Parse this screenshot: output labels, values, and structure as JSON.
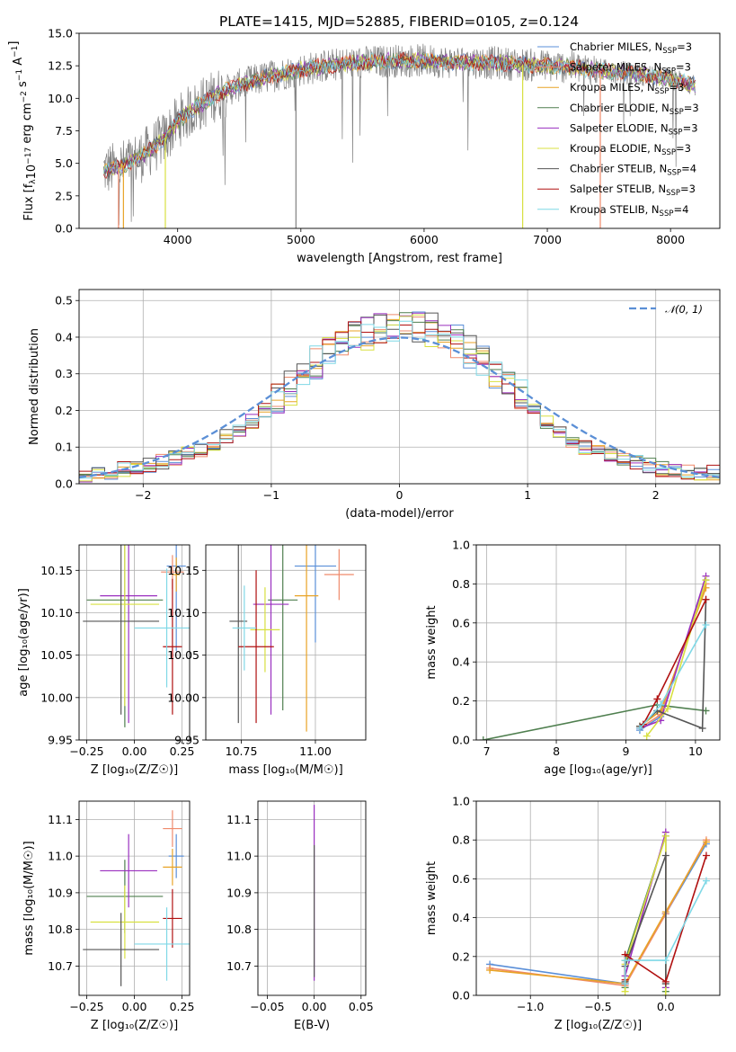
{
  "title": "PLATE=1415, MJD=52885, FIBERID=0105, z=0.124",
  "colors": {
    "Chabrier MILES": "#5a8fd8",
    "Salpeter MILES": "#ef8a6b",
    "Kroupa MILES": "#e8a326",
    "Chabrier ELODIE": "#4f7f4f",
    "Salpeter ELODIE": "#9a2fbf",
    "Kroupa ELODIE": "#d8e040",
    "Chabrier STELIB": "#555555",
    "Salpeter STELIB": "#b01010",
    "Kroupa STELIB": "#7fd8e6",
    "normal": "#5b8fd6"
  },
  "chart_data": [
    {
      "type": "line",
      "xlabel": "wavelength [Angstrom, rest frame]",
      "ylabel": "Flux [f_λ10^-17 erg cm^-2 s^-1 A^-1]",
      "xlim": [
        3200,
        8400
      ],
      "ylim": [
        0,
        15
      ],
      "xticks": [
        "4000",
        "5000",
        "6000",
        "7000",
        "8000"
      ],
      "yticks": [
        "0.0",
        "2.5",
        "5.0",
        "7.5",
        "10.0",
        "12.5",
        "15.0"
      ],
      "grid": false,
      "legend_position": "right",
      "series": [
        {
          "name": "Chabrier MILES, N_SSP=3"
        },
        {
          "name": "Salpeter MILES, N_SSP=3"
        },
        {
          "name": "Kroupa MILES, N_SSP=3"
        },
        {
          "name": "Chabrier ELODIE, N_SSP=3"
        },
        {
          "name": "Salpeter ELODIE, N_SSP=3"
        },
        {
          "name": "Kroupa ELODIE, N_SSP=3"
        },
        {
          "name": "Chabrier STELIB, N_SSP=4"
        },
        {
          "name": "Salpeter STELIB, N_SSP=3"
        },
        {
          "name": "Kroupa STELIB, N_SSP=4"
        }
      ],
      "continuum": {
        "x": [
          3400,
          3500,
          3600,
          3700,
          3800,
          3900,
          4000,
          4100,
          4200,
          4300,
          4400,
          4500,
          4600,
          4800,
          5000,
          5200,
          5400,
          5600,
          5800,
          6000,
          6200,
          6400,
          6600,
          6800,
          7000,
          7200,
          7400,
          7600,
          7800,
          8000,
          8200
        ],
        "y": [
          4.5,
          4.6,
          5.0,
          5.5,
          6.2,
          7.0,
          8.2,
          9.0,
          9.6,
          10.2,
          10.6,
          11.0,
          11.3,
          11.8,
          12.2,
          12.5,
          12.7,
          12.8,
          12.9,
          12.9,
          12.8,
          12.8,
          12.7,
          12.6,
          12.5,
          12.4,
          12.2,
          12.0,
          11.8,
          11.5,
          11.0
        ]
      }
    },
    {
      "type": "bar",
      "xlabel": "(data-model)/error",
      "ylabel": "Normed distribution",
      "xlim": [
        -2.5,
        2.5
      ],
      "ylim": [
        0,
        0.53
      ],
      "xticks": [
        "−2",
        "−1",
        "0",
        "1",
        "2"
      ],
      "yticks": [
        "0.0",
        "0.1",
        "0.2",
        "0.3",
        "0.4",
        "0.5"
      ],
      "grid": true,
      "legend_position": "top-right",
      "legend": "𝒩(0, 1)",
      "bin_width": 0.1,
      "histogram_mean": [
        0.02,
        0.03,
        0.03,
        0.04,
        0.04,
        0.05,
        0.06,
        0.07,
        0.08,
        0.09,
        0.11,
        0.13,
        0.15,
        0.17,
        0.2,
        0.23,
        0.26,
        0.3,
        0.33,
        0.36,
        0.38,
        0.4,
        0.41,
        0.42,
        0.43,
        0.43,
        0.43,
        0.42,
        0.41,
        0.39,
        0.36,
        0.33,
        0.3,
        0.27,
        0.24,
        0.2,
        0.17,
        0.14,
        0.12,
        0.1,
        0.09,
        0.08,
        0.07,
        0.06,
        0.05,
        0.04,
        0.04,
        0.03,
        0.03,
        0.03
      ]
    },
    {
      "type": "scatter",
      "xlabel": "Z [log10(Z/Z☉)]",
      "ylabel": "age  [log10(age/yr)]",
      "xlim": [
        -0.29,
        0.29
      ],
      "ylim": [
        9.95,
        10.18
      ],
      "xticks": [
        "−0.25",
        "0.00",
        "0.25"
      ],
      "yticks": [
        "9.95",
        "10.00",
        "10.05",
        "10.10",
        "10.15"
      ],
      "points": [
        {
          "x": 0.22,
          "y": 10.155,
          "xerr": 0.05,
          "yerr": 0.1
        },
        {
          "x": 0.2,
          "y": 10.148,
          "xerr": 0.06,
          "yerr": 0.02
        },
        {
          "x": 0.22,
          "y": 10.145,
          "xerr": 0.02,
          "yerr": 0.02
        },
        {
          "x": -0.05,
          "y": 10.115,
          "xerr": 0.2,
          "yerr": 0.15
        },
        {
          "x": -0.03,
          "y": 10.12,
          "xerr": 0.15,
          "yerr": 0.15
        },
        {
          "x": -0.05,
          "y": 10.11,
          "xerr": 0.18,
          "yerr": 0.12
        },
        {
          "x": -0.07,
          "y": 10.09,
          "xerr": 0.2,
          "yerr": 0.11
        },
        {
          "x": 0.2,
          "y": 10.06,
          "xerr": 0.05,
          "yerr": 0.08
        },
        {
          "x": 0.17,
          "y": 10.082,
          "xerr": 0.17,
          "yerr": 0.07
        }
      ]
    },
    {
      "type": "scatter",
      "xlabel": "mass [log10(M/M☉)]",
      "ylabel": "",
      "xlim": [
        10.63,
        11.17
      ],
      "ylim": [
        9.95,
        10.18
      ],
      "xticks": [
        "10.75",
        "11.00"
      ],
      "yticks": [
        "9.95",
        "10.00",
        "10.05",
        "10.10",
        "10.15"
      ],
      "points": [
        {
          "x": 11.0,
          "y": 10.155,
          "xerr": 0.07,
          "yerr": 0.09
        },
        {
          "x": 11.08,
          "y": 10.145,
          "xerr": 0.05,
          "yerr": 0.03
        },
        {
          "x": 10.97,
          "y": 10.12,
          "xerr": 0.04,
          "yerr": 0.16
        },
        {
          "x": 10.89,
          "y": 10.115,
          "xerr": 0.05,
          "yerr": 0.13
        },
        {
          "x": 10.85,
          "y": 10.11,
          "xerr": 0.06,
          "yerr": 0.13
        },
        {
          "x": 10.83,
          "y": 10.08,
          "xerr": 0.05,
          "yerr": 0.05
        },
        {
          "x": 10.74,
          "y": 10.09,
          "xerr": 0.03,
          "yerr": 0.12
        },
        {
          "x": 10.8,
          "y": 10.06,
          "xerr": 0.06,
          "yerr": 0.09
        },
        {
          "x": 10.76,
          "y": 10.082,
          "xerr": 0.04,
          "yerr": 0.05
        }
      ]
    },
    {
      "type": "line",
      "xlabel": "age  [log10(age/yr)]",
      "ylabel": "mass weight",
      "xlim": [
        6.85,
        10.35
      ],
      "ylim": [
        0,
        1.0
      ],
      "xticks": [
        "7",
        "8",
        "9",
        "10"
      ],
      "yticks": [
        "0.0",
        "0.2",
        "0.4",
        "0.6",
        "0.8",
        "1.0"
      ],
      "grid": true,
      "series": [
        {
          "x": [
            9.2,
            9.5,
            10.15
          ],
          "y": [
            0.05,
            0.12,
            0.82
          ]
        },
        {
          "x": [
            9.2,
            9.5,
            10.15
          ],
          "y": [
            0.06,
            0.13,
            0.8
          ]
        },
        {
          "x": [
            9.2,
            9.5,
            10.15
          ],
          "y": [
            0.07,
            0.15,
            0.78
          ]
        },
        {
          "x": [
            6.95,
            9.45,
            10.15
          ],
          "y": [
            0.0,
            0.18,
            0.15
          ]
        },
        {
          "x": [
            9.2,
            9.5,
            10.15
          ],
          "y": [
            0.06,
            0.1,
            0.84
          ]
        },
        {
          "x": [
            9.3,
            9.6,
            10.15
          ],
          "y": [
            0.02,
            0.16,
            0.82
          ]
        },
        {
          "x": [
            9.2,
            9.45,
            10.1,
            10.15
          ],
          "y": [
            0.07,
            0.15,
            0.06,
            0.72
          ]
        },
        {
          "x": [
            9.25,
            9.45,
            10.15
          ],
          "y": [
            0.08,
            0.21,
            0.72
          ]
        },
        {
          "x": [
            9.2,
            9.5,
            10.15
          ],
          "y": [
            0.06,
            0.18,
            0.59
          ]
        }
      ]
    },
    {
      "type": "scatter",
      "xlabel": "Z [log10(Z/Z☉)]",
      "ylabel": "mass [log10(M/M☉)]",
      "xlim": [
        -0.29,
        0.29
      ],
      "ylim": [
        10.62,
        11.15
      ],
      "xticks": [
        "−0.25",
        "0.00",
        "0.25"
      ],
      "yticks": [
        "10.7",
        "10.8",
        "10.9",
        "11.0",
        "11.1"
      ],
      "points": [
        {
          "x": 0.22,
          "y": 11.0,
          "xerr": 0.04,
          "yerr": 0.06
        },
        {
          "x": 0.2,
          "y": 11.075,
          "xerr": 0.05,
          "yerr": 0.05
        },
        {
          "x": 0.2,
          "y": 10.97,
          "xerr": 0.05,
          "yerr": 0.05
        },
        {
          "x": -0.05,
          "y": 10.89,
          "xerr": 0.2,
          "yerr": 0.1
        },
        {
          "x": -0.03,
          "y": 10.96,
          "xerr": 0.15,
          "yerr": 0.1
        },
        {
          "x": -0.05,
          "y": 10.82,
          "xerr": 0.18,
          "yerr": 0.1
        },
        {
          "x": -0.07,
          "y": 10.745,
          "xerr": 0.2,
          "yerr": 0.1
        },
        {
          "x": 0.2,
          "y": 10.83,
          "xerr": 0.05,
          "yerr": 0.08
        },
        {
          "x": 0.17,
          "y": 10.76,
          "xerr": 0.17,
          "yerr": 0.1
        }
      ]
    },
    {
      "type": "scatter",
      "xlabel": "E(B-V)",
      "ylabel": "",
      "xlim": [
        -0.06,
        0.055
      ],
      "ylim": [
        10.62,
        11.15
      ],
      "xticks": [
        "−0.05",
        "0.00",
        "0.05"
      ],
      "yticks": [
        "10.7",
        "10.8",
        "10.9",
        "11.0",
        "11.1"
      ],
      "points": [
        {
          "x": 0.0,
          "y": 10.9,
          "yerr": 0.24
        },
        {
          "x": 0.0,
          "y": 10.85,
          "yerr": 0.18
        }
      ]
    },
    {
      "type": "line",
      "xlabel": "Z [log10(Z/Z☉)]",
      "ylabel": "mass weight",
      "xlim": [
        -1.4,
        0.4
      ],
      "ylim": [
        0,
        1.0
      ],
      "xticks": [
        "−1.0",
        "−0.5",
        "0.0"
      ],
      "yticks": [
        "0.0",
        "0.2",
        "0.4",
        "0.6",
        "0.8",
        "1.0"
      ],
      "grid": true,
      "series": [
        {
          "x": [
            -1.3,
            -0.3,
            0.0,
            0.0,
            0.3
          ],
          "y": [
            0.16,
            0.06,
            0.42,
            0.42,
            0.78
          ]
        },
        {
          "x": [
            -1.3,
            -0.3,
            0.0,
            0.3
          ],
          "y": [
            0.14,
            0.05,
            0.42,
            0.8
          ]
        },
        {
          "x": [
            -1.3,
            -0.3,
            0.0,
            0.3
          ],
          "y": [
            0.13,
            0.06,
            0.43,
            0.79
          ]
        },
        {
          "x": [
            -0.3,
            -0.3,
            0.0,
            0.0
          ],
          "y": [
            0.04,
            0.18,
            0.82,
            0.02
          ]
        },
        {
          "x": [
            -0.3,
            -0.3,
            0.0,
            0.0
          ],
          "y": [
            0.06,
            0.1,
            0.84,
            0.04
          ]
        },
        {
          "x": [
            -0.3,
            -0.3,
            0.0,
            0.0
          ],
          "y": [
            0.02,
            0.16,
            0.82,
            0.0
          ]
        },
        {
          "x": [
            -0.3,
            -0.3,
            0.0,
            0.0
          ],
          "y": [
            0.07,
            0.15,
            0.72,
            0.06
          ]
        },
        {
          "x": [
            -0.3,
            -0.3,
            0.0,
            0.3
          ],
          "y": [
            0.08,
            0.21,
            0.07,
            0.72
          ]
        },
        {
          "x": [
            -0.3,
            -0.3,
            0.0,
            0.3
          ],
          "y": [
            0.06,
            0.18,
            0.18,
            0.59
          ]
        }
      ]
    }
  ]
}
